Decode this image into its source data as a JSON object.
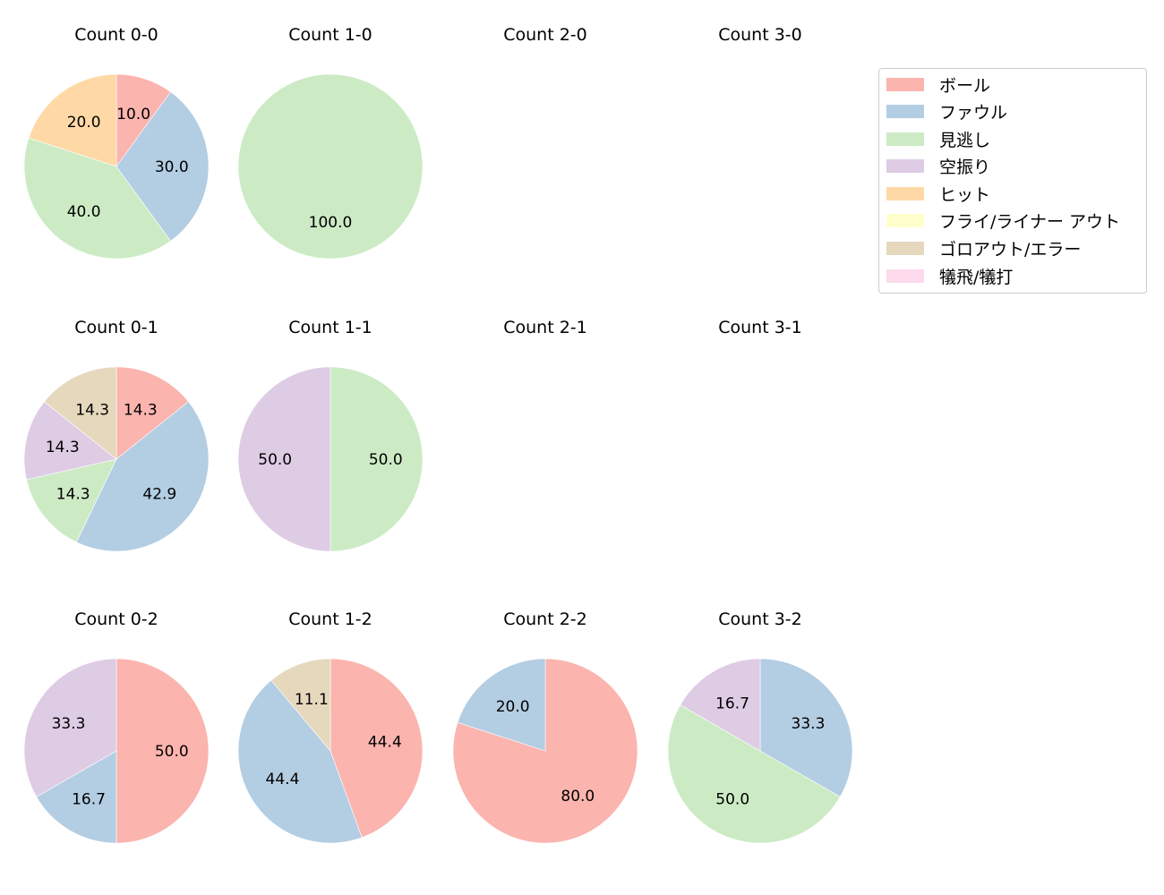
{
  "chart_data": {
    "type": "pie",
    "layout": "grid 3 rows x 4 cols of pie charts, legend at top-right",
    "start_angle": 90,
    "direction": "clockwise",
    "categories": [
      "ボール",
      "ファウル",
      "見逃し",
      "空振り",
      "ヒット",
      "フライ/ライナー アウト",
      "ゴロアウト/エラー",
      "犠飛/犠打"
    ],
    "colors": [
      "#fbb4ae",
      "#b3cde3",
      "#ccebc5",
      "#decbe4",
      "#fed9a6",
      "#ffffcc",
      "#e5d8bd",
      "#fddaec"
    ],
    "panels": [
      {
        "title": "Count 0-0",
        "row": 0,
        "col": 0,
        "values": [
          10.0,
          30.0,
          40.0,
          0,
          20.0,
          0,
          0,
          0
        ]
      },
      {
        "title": "Count 1-0",
        "row": 0,
        "col": 1,
        "values": [
          0,
          0,
          100.0,
          0,
          0,
          0,
          0,
          0
        ]
      },
      {
        "title": "Count 2-0",
        "row": 0,
        "col": 2,
        "values": []
      },
      {
        "title": "Count 3-0",
        "row": 0,
        "col": 3,
        "values": []
      },
      {
        "title": "Count 0-1",
        "row": 1,
        "col": 0,
        "values": [
          14.3,
          42.9,
          14.3,
          14.3,
          0,
          0,
          14.3,
          0
        ]
      },
      {
        "title": "Count 1-1",
        "row": 1,
        "col": 1,
        "values": [
          0,
          0,
          50.0,
          50.0,
          0,
          0,
          0,
          0
        ]
      },
      {
        "title": "Count 2-1",
        "row": 1,
        "col": 2,
        "values": []
      },
      {
        "title": "Count 3-1",
        "row": 1,
        "col": 3,
        "values": []
      },
      {
        "title": "Count 0-2",
        "row": 2,
        "col": 0,
        "values": [
          50.0,
          16.7,
          0,
          33.3,
          0,
          0,
          0,
          0
        ]
      },
      {
        "title": "Count 1-2",
        "row": 2,
        "col": 1,
        "values": [
          44.4,
          44.4,
          0,
          0,
          0,
          0,
          11.1,
          0
        ]
      },
      {
        "title": "Count 2-2",
        "row": 2,
        "col": 2,
        "values": [
          80.0,
          20.0,
          0,
          0,
          0,
          0,
          0,
          0
        ]
      },
      {
        "title": "Count 3-2",
        "row": 2,
        "col": 3,
        "values": [
          0,
          33.3,
          50.0,
          16.7,
          0,
          0,
          0,
          0
        ]
      }
    ]
  },
  "legend": {
    "items": [
      {
        "label": "ボール",
        "color": "#fbb4ae"
      },
      {
        "label": "ファウル",
        "color": "#b3cde3"
      },
      {
        "label": "見逃し",
        "color": "#ccebc5"
      },
      {
        "label": "空振り",
        "color": "#decbe4"
      },
      {
        "label": "ヒット",
        "color": "#fed9a6"
      },
      {
        "label": "フライ/ライナー アウト",
        "color": "#ffffcc"
      },
      {
        "label": "ゴロアウト/エラー",
        "color": "#e5d8bd"
      },
      {
        "label": "犠飛/犠打",
        "color": "#fddaec"
      }
    ]
  }
}
